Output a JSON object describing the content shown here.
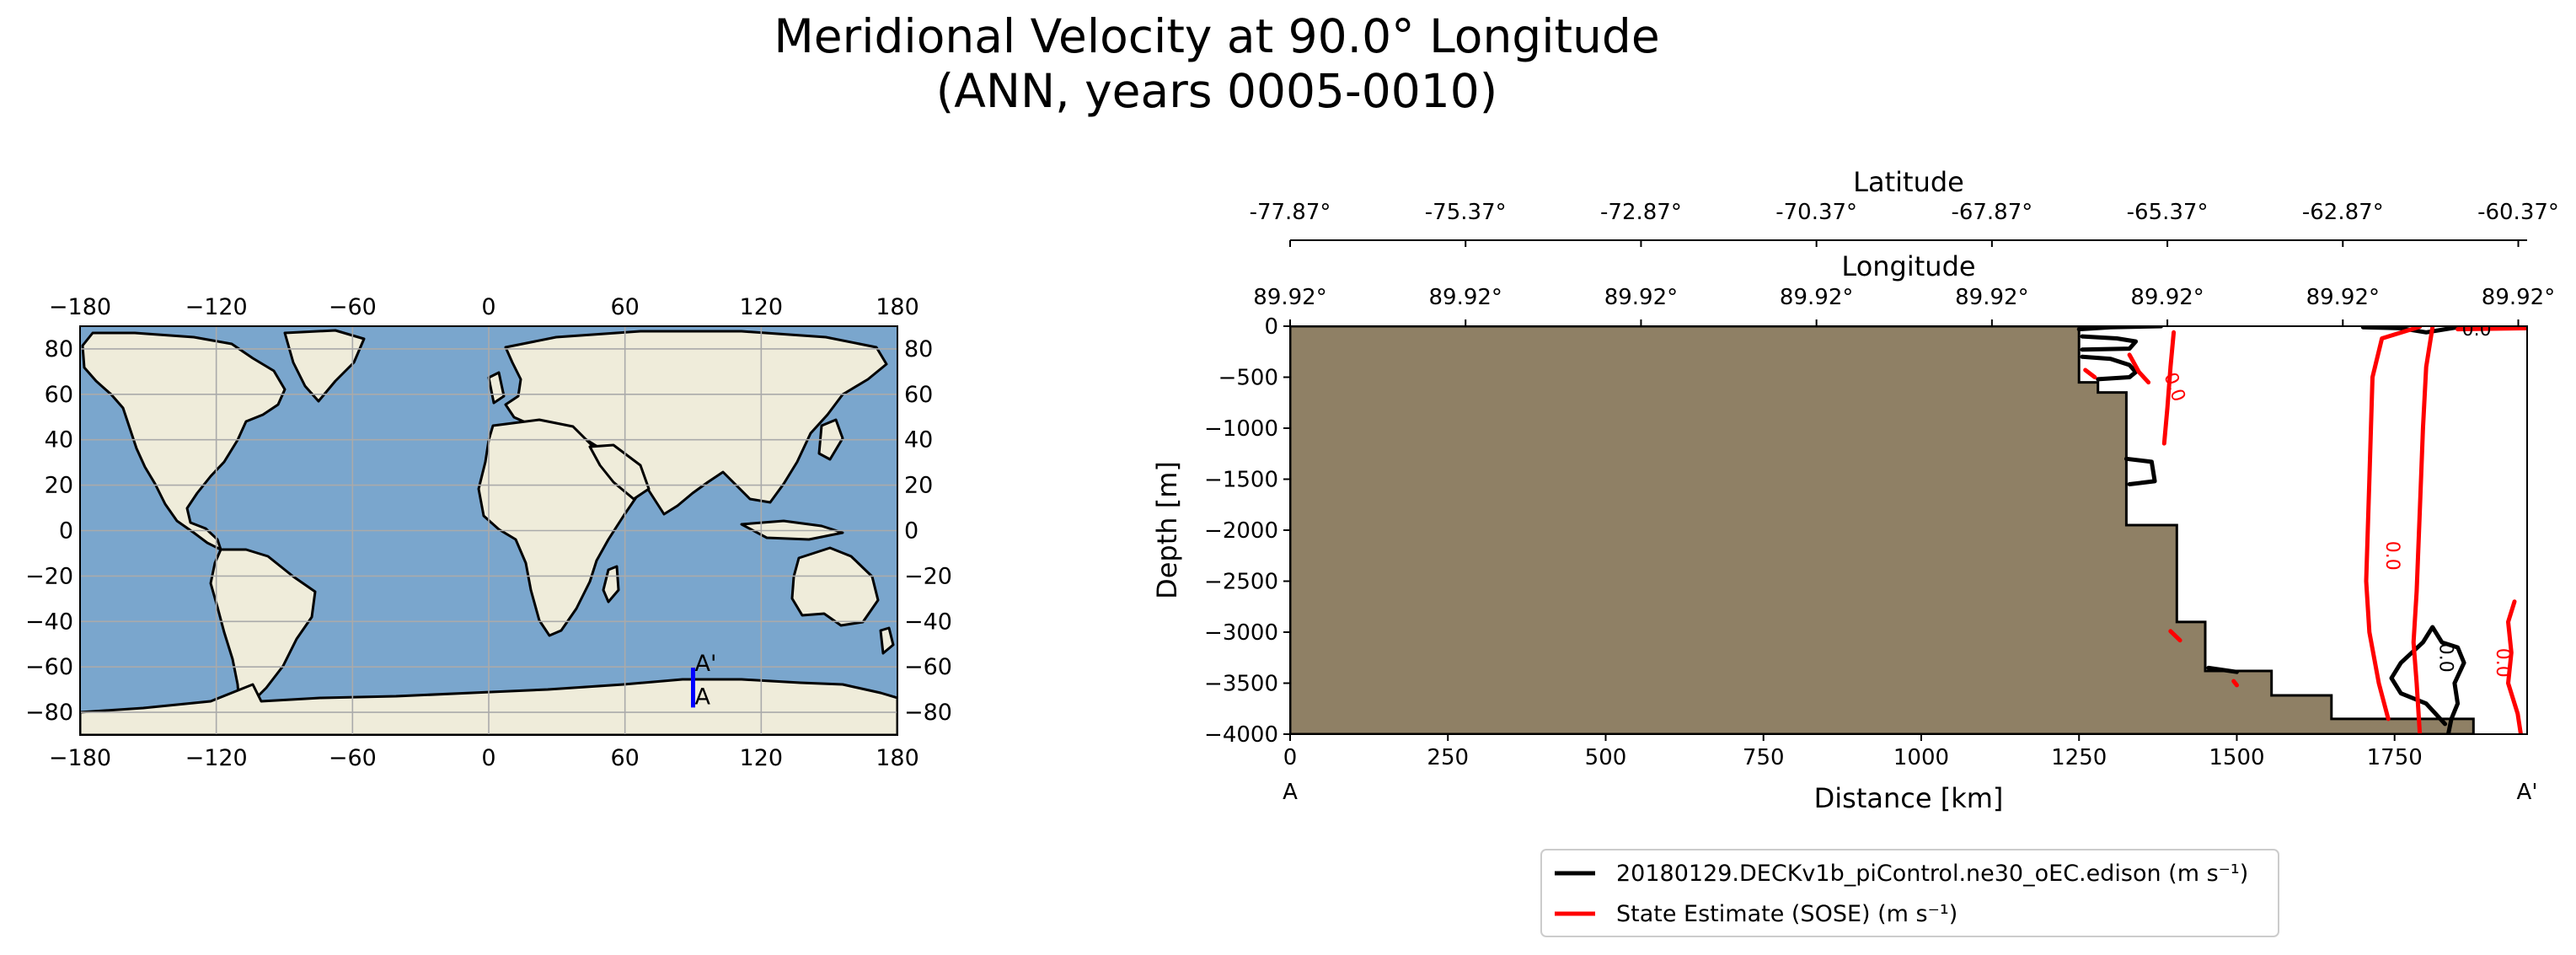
{
  "title_line1": "Meridional Velocity at 90.0° Longitude",
  "title_line2": "(ANN, years 0005-0010)",
  "colors": {
    "ocean": "#7aa6cd",
    "land": "#efecda",
    "seafloor": "#8f8065",
    "model": "#000000",
    "obs": "#ff0000",
    "transect": "#0000ff"
  },
  "map": {
    "lon_ticks": [
      "−180",
      "−120",
      "−60",
      "0",
      "60",
      "120",
      "180"
    ],
    "lat_ticks": [
      "80",
      "60",
      "40",
      "20",
      "0",
      "−20",
      "−40",
      "−60",
      "−80"
    ],
    "lon_range": [
      -180,
      180
    ],
    "lat_range": [
      -90,
      90
    ],
    "grid": true,
    "transect": {
      "lon": 90.0,
      "lat_start": -77.87,
      "lat_end": -60.37
    },
    "label_start": "A",
    "label_end": "A'"
  },
  "chart_data": {
    "type": "contour",
    "xlabel": "Distance [km]",
    "ylabel": "Depth [m]",
    "xlim": [
      0,
      1960
    ],
    "ylim": [
      -4000,
      0
    ],
    "x_ticks": [
      "0",
      "250",
      "500",
      "750",
      "1000",
      "1250",
      "1500",
      "1750"
    ],
    "y_ticks": [
      "0",
      "−500",
      "−1000",
      "−1500",
      "−2000",
      "−2500",
      "−3000",
      "−3500",
      "−4000"
    ],
    "x_start_label": "A",
    "x_end_label": "A'",
    "top_axis1": {
      "label": "Longitude",
      "ticks": [
        "89.92°",
        "89.92°",
        "89.92°",
        "89.92°",
        "89.92°",
        "89.92°",
        "89.92°",
        "89.92°"
      ]
    },
    "top_axis2": {
      "label": "Latitude",
      "ticks": [
        "-77.87°",
        "-75.37°",
        "-72.87°",
        "-70.37°",
        "-67.87°",
        "-65.37°",
        "-62.87°",
        "-60.37°"
      ]
    },
    "bathymetry": [
      [
        1250,
        0
      ],
      [
        1250,
        -550
      ],
      [
        1280,
        -550
      ],
      [
        1280,
        -650
      ],
      [
        1325,
        -650
      ],
      [
        1325,
        -1950
      ],
      [
        1405,
        -1950
      ],
      [
        1405,
        -2900
      ],
      [
        1450,
        -2900
      ],
      [
        1450,
        -3380
      ],
      [
        1555,
        -3380
      ],
      [
        1555,
        -3620
      ],
      [
        1650,
        -3620
      ],
      [
        1650,
        -3850
      ],
      [
        1875,
        -3850
      ],
      [
        1875,
        -4000
      ],
      [
        0,
        -4000
      ],
      [
        0,
        0
      ]
    ],
    "contour_labels": [
      {
        "text": "0.0",
        "x": 1880,
        "y": -40,
        "series": "model",
        "angle": 0
      },
      {
        "text": "0.0",
        "x": 1745,
        "y": -2250,
        "series": "obs",
        "angle": 90
      },
      {
        "text": "0.0",
        "x": 1830,
        "y": -3250,
        "series": "model",
        "angle": 90
      },
      {
        "text": "0.0",
        "x": 1920,
        "y": -3300,
        "series": "obs",
        "angle": 90
      },
      {
        "text": "0.0",
        "x": 1400,
        "y": -600,
        "series": "obs",
        "angle": 70
      }
    ],
    "series": [
      {
        "name": "20180129.DECKv1b_piControl.ne30_oEC.edison (m s⁻¹)",
        "color": "#000000",
        "lines": [
          [
            [
              1830,
              -3900
            ],
            [
              1800,
              -3700
            ],
            [
              1760,
              -3600
            ],
            [
              1745,
              -3450
            ],
            [
              1760,
              -3300
            ],
            [
              1795,
              -3100
            ],
            [
              1810,
              -2950
            ],
            [
              1825,
              -3100
            ],
            [
              1850,
              -3150
            ],
            [
              1860,
              -3300
            ],
            [
              1845,
              -3500
            ],
            [
              1850,
              -3700
            ],
            [
              1840,
              -3850
            ],
            [
              1835,
              -4000
            ]
          ],
          [
            [
              1250,
              -30
            ],
            [
              1300,
              -10
            ],
            [
              1380,
              0
            ]
          ],
          [
            [
              1255,
              -100
            ],
            [
              1310,
              -120
            ],
            [
              1340,
              -150
            ],
            [
              1330,
              -220
            ],
            [
              1255,
              -230
            ]
          ],
          [
            [
              1255,
              -300
            ],
            [
              1300,
              -320
            ],
            [
              1330,
              -380
            ],
            [
              1340,
              -450
            ],
            [
              1330,
              -500
            ],
            [
              1280,
              -520
            ]
          ],
          [
            [
              1325,
              -1300
            ],
            [
              1365,
              -1330
            ],
            [
              1370,
              -1520
            ],
            [
              1330,
              -1550
            ]
          ],
          [
            [
              1700,
              -10
            ],
            [
              1760,
              -20
            ],
            [
              1800,
              -60
            ],
            [
              1830,
              -30
            ],
            [
              1860,
              0
            ]
          ],
          [
            [
              1455,
              -3350
            ],
            [
              1500,
              -3390
            ]
          ]
        ]
      },
      {
        "name": "State Estimate (SOSE) (m s⁻¹)",
        "color": "#ff0000",
        "lines": [
          [
            [
              1810,
              -10
            ],
            [
              1800,
              -400
            ],
            [
              1795,
              -1000
            ],
            [
              1790,
              -1800
            ],
            [
              1785,
              -2600
            ],
            [
              1780,
              -3100
            ],
            [
              1785,
              -3500
            ],
            [
              1790,
              -4000
            ]
          ],
          [
            [
              1790,
              -5
            ],
            [
              1730,
              -120
            ],
            [
              1715,
              -500
            ],
            [
              1710,
              -1500
            ],
            [
              1705,
              -2500
            ],
            [
              1710,
              -3000
            ],
            [
              1725,
              -3500
            ],
            [
              1740,
              -3850
            ]
          ],
          [
            [
              1850,
              -30
            ],
            [
              1960,
              -20
            ]
          ],
          [
            [
              1400,
              -60
            ],
            [
              1395,
              -400
            ],
            [
              1390,
              -800
            ],
            [
              1385,
              -1150
            ]
          ],
          [
            [
              1330,
              -280
            ],
            [
              1345,
              -450
            ],
            [
              1360,
              -550
            ]
          ],
          [
            [
              1940,
              -2700
            ],
            [
              1930,
              -2900
            ],
            [
              1935,
              -3200
            ],
            [
              1930,
              -3500
            ],
            [
              1945,
              -3800
            ],
            [
              1950,
              -4000
            ]
          ],
          [
            [
              1395,
              -2990
            ],
            [
              1410,
              -3080
            ]
          ],
          [
            [
              1495,
              -3480
            ],
            [
              1500,
              -3520
            ]
          ],
          [
            [
              1260,
              -430
            ],
            [
              1275,
              -500
            ]
          ]
        ]
      }
    ]
  }
}
